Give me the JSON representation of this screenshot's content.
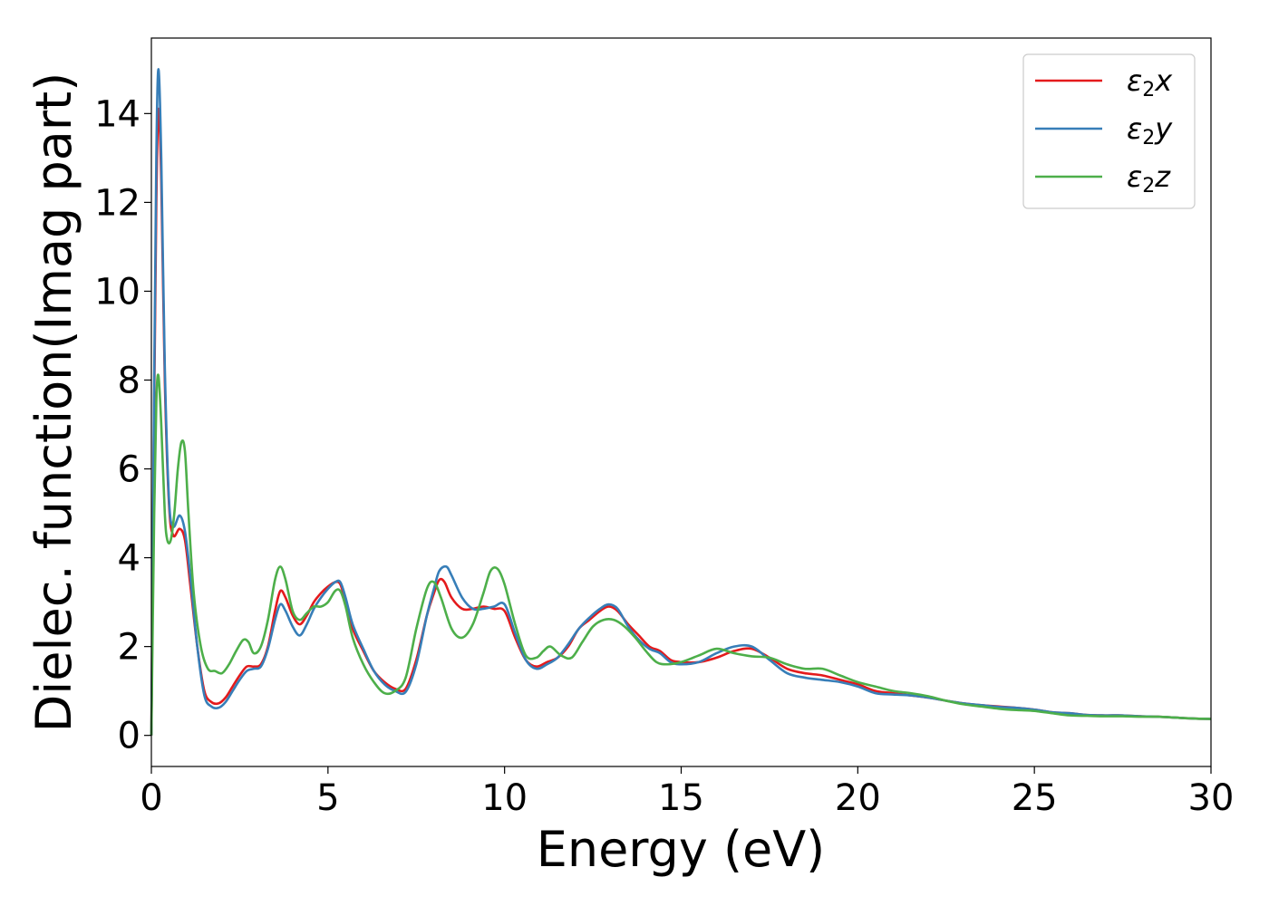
{
  "chart_data": {
    "type": "line",
    "title": "",
    "xlabel": "Energy (eV)",
    "ylabel": "Dielec. function(Imag part)",
    "xlim": [
      0,
      30
    ],
    "ylim": [
      -0.7,
      15.7
    ],
    "xticks": [
      0,
      5,
      10,
      15,
      20,
      25,
      30
    ],
    "yticks": [
      0,
      2,
      4,
      6,
      8,
      10,
      12,
      14
    ],
    "grid": false,
    "legend": "top-right",
    "series": [
      {
        "name": "ε₂x",
        "label_base": "ε",
        "label_sub": "2",
        "label_suffix": "x",
        "color": "#e41a1c",
        "x": [
          0,
          0.08,
          0.14,
          0.2,
          0.28,
          0.38,
          0.5,
          0.62,
          0.8,
          0.95,
          1.1,
          1.3,
          1.5,
          1.7,
          1.9,
          2.1,
          2.3,
          2.5,
          2.7,
          2.9,
          3.1,
          3.3,
          3.5,
          3.65,
          3.8,
          4.0,
          4.2,
          4.4,
          4.6,
          4.8,
          5.0,
          5.2,
          5.35,
          5.5,
          5.7,
          6.0,
          6.3,
          6.6,
          6.9,
          7.2,
          7.5,
          7.8,
          8.0,
          8.15,
          8.3,
          8.5,
          8.8,
          9.1,
          9.4,
          9.7,
          10.0,
          10.3,
          10.6,
          10.9,
          11.2,
          11.5,
          11.8,
          12.1,
          12.4,
          12.7,
          12.95,
          13.2,
          13.5,
          13.8,
          14.1,
          14.4,
          14.7,
          15.0,
          15.5,
          16.0,
          16.5,
          17.0,
          17.5,
          18.0,
          18.5,
          19.0,
          19.5,
          20.0,
          20.5,
          21.0,
          21.5,
          22.0,
          22.5,
          23.0,
          23.5,
          24.0,
          24.5,
          25.0,
          25.5,
          26.0,
          26.5,
          27.0,
          27.5,
          28.0,
          28.5,
          29.0,
          29.5,
          30.0
        ],
        "y": [
          0,
          7.5,
          12.0,
          14.1,
          12.5,
          8.0,
          5.2,
          4.5,
          4.65,
          4.4,
          3.4,
          2.0,
          1.0,
          0.75,
          0.72,
          0.85,
          1.1,
          1.35,
          1.55,
          1.55,
          1.6,
          2.0,
          2.8,
          3.25,
          3.1,
          2.7,
          2.5,
          2.7,
          3.0,
          3.2,
          3.35,
          3.45,
          3.4,
          3.0,
          2.4,
          1.9,
          1.45,
          1.2,
          1.05,
          1.05,
          1.7,
          2.7,
          3.2,
          3.5,
          3.45,
          3.1,
          2.85,
          2.85,
          2.9,
          2.85,
          2.8,
          2.2,
          1.7,
          1.55,
          1.65,
          1.75,
          2.0,
          2.4,
          2.6,
          2.8,
          2.9,
          2.8,
          2.5,
          2.25,
          2.0,
          1.9,
          1.7,
          1.65,
          1.65,
          1.75,
          1.9,
          1.95,
          1.75,
          1.5,
          1.4,
          1.35,
          1.25,
          1.15,
          1.0,
          0.95,
          0.9,
          0.85,
          0.78,
          0.72,
          0.68,
          0.65,
          0.62,
          0.58,
          0.52,
          0.5,
          0.46,
          0.45,
          0.45,
          0.43,
          0.42,
          0.4,
          0.38,
          0.37
        ]
      },
      {
        "name": "ε₂y",
        "label_base": "ε",
        "label_sub": "2",
        "label_suffix": "y",
        "color": "#377eb8",
        "x": [
          0,
          0.08,
          0.14,
          0.2,
          0.28,
          0.38,
          0.5,
          0.62,
          0.8,
          0.95,
          1.1,
          1.3,
          1.5,
          1.7,
          1.9,
          2.1,
          2.3,
          2.5,
          2.7,
          2.9,
          3.1,
          3.3,
          3.5,
          3.65,
          3.8,
          4.0,
          4.2,
          4.4,
          4.6,
          4.8,
          5.0,
          5.2,
          5.35,
          5.5,
          5.7,
          6.0,
          6.3,
          6.6,
          6.9,
          7.2,
          7.5,
          7.8,
          8.0,
          8.15,
          8.35,
          8.5,
          8.8,
          9.1,
          9.4,
          9.7,
          10.0,
          10.3,
          10.6,
          10.9,
          11.2,
          11.5,
          11.8,
          12.1,
          12.4,
          12.7,
          12.95,
          13.2,
          13.5,
          13.8,
          14.1,
          14.4,
          14.7,
          15.0,
          15.5,
          16.0,
          16.5,
          17.0,
          17.5,
          18.0,
          18.5,
          19.0,
          19.5,
          20.0,
          20.5,
          21.0,
          21.5,
          22.0,
          22.5,
          23.0,
          23.5,
          24.0,
          24.5,
          25.0,
          25.5,
          26.0,
          26.5,
          27.0,
          27.5,
          28.0,
          28.5,
          29.0,
          29.5,
          30.0
        ],
        "y": [
          0,
          8.0,
          13.0,
          15.0,
          13.0,
          8.3,
          5.3,
          4.7,
          4.95,
          4.6,
          3.6,
          2.0,
          0.9,
          0.65,
          0.62,
          0.75,
          1.0,
          1.25,
          1.45,
          1.5,
          1.55,
          1.95,
          2.6,
          2.95,
          2.8,
          2.45,
          2.25,
          2.5,
          2.85,
          3.1,
          3.3,
          3.45,
          3.45,
          3.1,
          2.5,
          1.95,
          1.45,
          1.15,
          1.0,
          0.98,
          1.6,
          2.7,
          3.3,
          3.7,
          3.8,
          3.6,
          3.1,
          2.85,
          2.85,
          2.9,
          2.95,
          2.3,
          1.7,
          1.5,
          1.6,
          1.75,
          2.05,
          2.4,
          2.65,
          2.85,
          2.95,
          2.85,
          2.45,
          2.15,
          1.95,
          1.85,
          1.65,
          1.6,
          1.65,
          1.85,
          2.0,
          2.0,
          1.7,
          1.4,
          1.3,
          1.25,
          1.2,
          1.1,
          0.95,
          0.92,
          0.9,
          0.85,
          0.78,
          0.72,
          0.68,
          0.64,
          0.62,
          0.58,
          0.52,
          0.5,
          0.46,
          0.45,
          0.45,
          0.43,
          0.42,
          0.4,
          0.38,
          0.37
        ]
      },
      {
        "name": "ε₂z",
        "label_base": "ε",
        "label_sub": "2",
        "label_suffix": "z",
        "color": "#4daf4a",
        "x": [
          0,
          0.08,
          0.14,
          0.2,
          0.28,
          0.38,
          0.45,
          0.55,
          0.65,
          0.75,
          0.85,
          0.95,
          1.05,
          1.2,
          1.4,
          1.6,
          1.8,
          2.0,
          2.2,
          2.4,
          2.6,
          2.75,
          2.9,
          3.1,
          3.3,
          3.5,
          3.65,
          3.8,
          4.0,
          4.2,
          4.4,
          4.6,
          4.8,
          5.0,
          5.2,
          5.35,
          5.5,
          5.7,
          6.0,
          6.3,
          6.6,
          6.9,
          7.2,
          7.5,
          7.8,
          8.0,
          8.2,
          8.5,
          8.8,
          9.1,
          9.4,
          9.6,
          9.8,
          10.0,
          10.3,
          10.6,
          10.9,
          11.1,
          11.3,
          11.6,
          11.9,
          12.2,
          12.5,
          12.8,
          13.1,
          13.4,
          13.7,
          14.0,
          14.3,
          14.6,
          15.0,
          15.5,
          16.0,
          16.5,
          17.0,
          17.5,
          18.0,
          18.5,
          19.0,
          19.5,
          20.0,
          20.5,
          21.0,
          21.5,
          22.0,
          22.5,
          23.0,
          23.5,
          24.0,
          24.5,
          25.0,
          25.5,
          26.0,
          26.5,
          27.0,
          27.5,
          28.0,
          28.5,
          29.0,
          29.5,
          30.0
        ],
        "y": [
          0,
          5.0,
          7.5,
          8.1,
          7.0,
          5.0,
          4.4,
          4.4,
          5.0,
          6.0,
          6.6,
          6.4,
          5.0,
          3.2,
          2.0,
          1.5,
          1.45,
          1.4,
          1.6,
          1.9,
          2.15,
          2.1,
          1.85,
          2.0,
          2.6,
          3.5,
          3.8,
          3.5,
          2.8,
          2.6,
          2.75,
          2.9,
          2.9,
          3.0,
          3.25,
          3.25,
          2.9,
          2.2,
          1.6,
          1.2,
          0.95,
          1.0,
          1.3,
          2.4,
          3.3,
          3.45,
          3.1,
          2.4,
          2.2,
          2.5,
          3.2,
          3.7,
          3.75,
          3.4,
          2.5,
          1.8,
          1.75,
          1.9,
          2.0,
          1.8,
          1.75,
          2.1,
          2.45,
          2.6,
          2.6,
          2.45,
          2.2,
          1.9,
          1.65,
          1.6,
          1.65,
          1.8,
          1.95,
          1.85,
          1.78,
          1.75,
          1.6,
          1.5,
          1.5,
          1.35,
          1.2,
          1.1,
          1.0,
          0.95,
          0.88,
          0.78,
          0.7,
          0.65,
          0.6,
          0.57,
          0.55,
          0.5,
          0.45,
          0.44,
          0.43,
          0.43,
          0.42,
          0.42,
          0.4,
          0.38,
          0.37
        ]
      }
    ]
  }
}
